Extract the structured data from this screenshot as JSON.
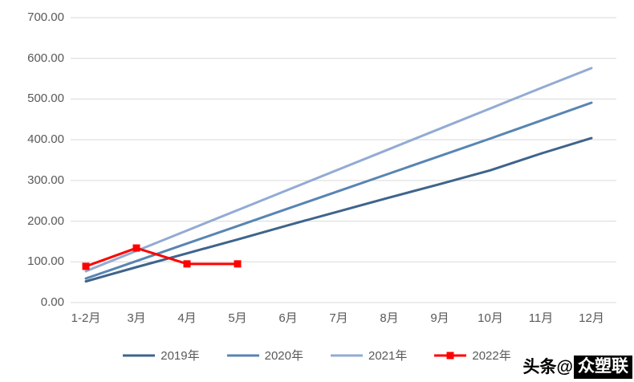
{
  "chart_data": {
    "type": "line",
    "title": "",
    "xlabel": "",
    "ylabel": "",
    "categories": [
      "1-2月",
      "3月",
      "4月",
      "5月",
      "6月",
      "7月",
      "8月",
      "9月",
      "10月",
      "11月",
      "12月"
    ],
    "series": [
      {
        "name": "2019年",
        "color": "#3F648C",
        "marker": "none",
        "values": [
          52,
          87,
          121,
          155,
          190,
          224,
          258,
          291,
          325,
          366,
          404
        ]
      },
      {
        "name": "2020年",
        "color": "#5885B3",
        "marker": "none",
        "values": [
          59,
          102,
          145,
          188,
          231,
          274,
          317,
          360,
          403,
          447,
          491
        ]
      },
      {
        "name": "2021年",
        "color": "#92ABD3",
        "marker": "none",
        "values": [
          77,
          127,
          177,
          227,
          277,
          327,
          377,
          427,
          477,
          527,
          576
        ]
      },
      {
        "name": "2022年",
        "color": "#FF0000",
        "marker": "square",
        "values": [
          89,
          134,
          95,
          95
        ]
      }
    ],
    "ylim": [
      0,
      700
    ],
    "ytick_step": 100,
    "ytick_labels": [
      "0.00",
      "100.00",
      "200.00",
      "300.00",
      "400.00",
      "500.00",
      "600.00",
      "700.00"
    ],
    "grid": true,
    "gridline_color": "#D9D9D9",
    "axis_text_color": "#595959",
    "legend_position": "bottom"
  },
  "watermark": {
    "prefix": "头条@",
    "name": "众塑联"
  }
}
